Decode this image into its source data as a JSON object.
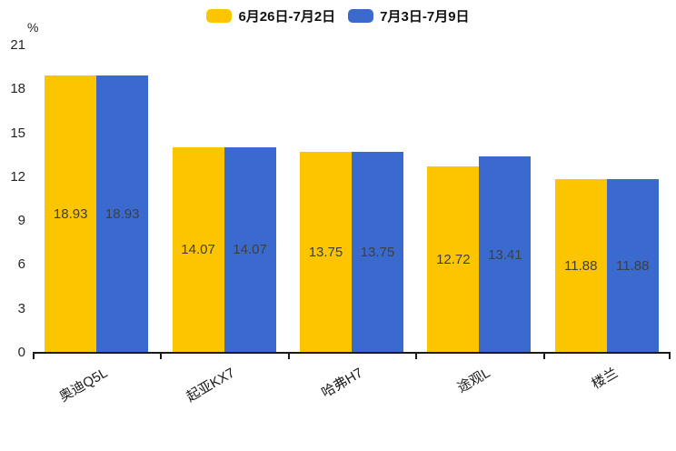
{
  "legend": {
    "items": [
      {
        "label": "6月26日-7月2日",
        "color": "#FDC500"
      },
      {
        "label": "7月3日-7月9日",
        "color": "#3A6ACD"
      }
    ]
  },
  "axis": {
    "unit_label": "%",
    "y_ticks": [
      21,
      18,
      15,
      12,
      9,
      6,
      3,
      0
    ]
  },
  "chart_data": {
    "type": "bar",
    "categories": [
      "奥迪Q5L",
      "起亚KX7",
      "哈弗H7",
      "途观L",
      "楼兰"
    ],
    "series": [
      {
        "name": "6月26日-7月2日",
        "color": "#FDC500",
        "values": [
          18.93,
          14.07,
          13.75,
          12.72,
          11.88
        ]
      },
      {
        "name": "7月3日-7月9日",
        "color": "#3A6ACD",
        "values": [
          18.93,
          14.07,
          13.75,
          13.41,
          11.88
        ]
      }
    ],
    "ylabel": "%",
    "ylim": [
      0,
      21
    ],
    "y_tick_step": 3,
    "grid": false,
    "legend_position": "top-center",
    "value_labels": "inside-center",
    "x_label_rotation_deg": -30
  }
}
